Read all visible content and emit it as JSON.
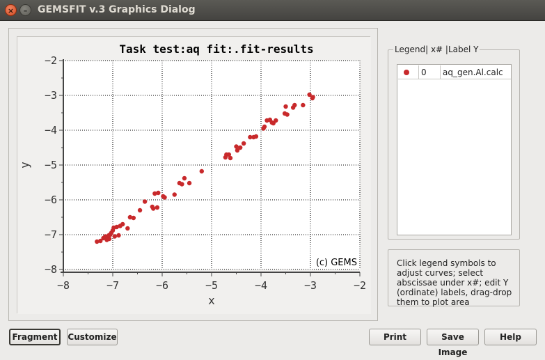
{
  "window": {
    "title": "GEMSFIT v.3 Graphics Dialog",
    "close_glyph": "×",
    "minimize_glyph": "–"
  },
  "chart_data": {
    "type": "scatter",
    "title": "Task test:aq fit:.fit-results",
    "xlabel": "x",
    "ylabel": "y",
    "xlim": [
      -8,
      -2
    ],
    "ylim": [
      -8,
      -2
    ],
    "xticks": [
      -8,
      -7,
      -6,
      -5,
      -4,
      -3,
      -2
    ],
    "yticks": [
      -2,
      -3,
      -4,
      -5,
      -6,
      -7,
      -8
    ],
    "tick_labels_x": [
      "−8",
      "−7",
      "−6",
      "−5",
      "−4",
      "−3",
      "−2"
    ],
    "tick_labels_y": [
      "−2",
      "−3",
      "−4",
      "−5",
      "−6",
      "−7",
      "−8"
    ],
    "grid": true,
    "annotation": "(c) GEMS",
    "marker_color": "#c8292b",
    "series": [
      {
        "name": "aq_gen.Al.calc",
        "points": [
          [
            -7.32,
            -7.2
          ],
          [
            -7.25,
            -7.18
          ],
          [
            -7.19,
            -7.1
          ],
          [
            -7.15,
            -7.05
          ],
          [
            -7.12,
            -7.15
          ],
          [
            -7.1,
            -7.1
          ],
          [
            -7.07,
            -7.12
          ],
          [
            -7.05,
            -7.0
          ],
          [
            -7.03,
            -6.95
          ],
          [
            -7.0,
            -6.88
          ],
          [
            -6.98,
            -6.8
          ],
          [
            -6.96,
            -7.05
          ],
          [
            -7.08,
            -7.02
          ],
          [
            -6.92,
            -6.78
          ],
          [
            -6.88,
            -7.02
          ],
          [
            -6.85,
            -6.75
          ],
          [
            -6.8,
            -6.7
          ],
          [
            -6.7,
            -6.82
          ],
          [
            -6.65,
            -6.5
          ],
          [
            -6.58,
            -6.52
          ],
          [
            -6.45,
            -6.3
          ],
          [
            -6.35,
            -6.05
          ],
          [
            -6.2,
            -6.2
          ],
          [
            -6.18,
            -6.25
          ],
          [
            -6.15,
            -5.82
          ],
          [
            -6.1,
            -6.22
          ],
          [
            -6.08,
            -5.8
          ],
          [
            -5.98,
            -5.9
          ],
          [
            -5.95,
            -5.93
          ],
          [
            -5.75,
            -5.85
          ],
          [
            -5.65,
            -5.52
          ],
          [
            -5.6,
            -5.55
          ],
          [
            -5.55,
            -5.38
          ],
          [
            -5.45,
            -5.52
          ],
          [
            -5.2,
            -5.18
          ],
          [
            -4.72,
            -4.78
          ],
          [
            -4.7,
            -4.7
          ],
          [
            -4.65,
            -4.7
          ],
          [
            -4.62,
            -4.8
          ],
          [
            -4.5,
            -4.47
          ],
          [
            -4.48,
            -4.58
          ],
          [
            -4.42,
            -4.5
          ],
          [
            -4.35,
            -4.38
          ],
          [
            -4.22,
            -4.2
          ],
          [
            -4.15,
            -4.2
          ],
          [
            -4.1,
            -4.18
          ],
          [
            -3.95,
            -3.95
          ],
          [
            -3.93,
            -3.9
          ],
          [
            -3.88,
            -3.72
          ],
          [
            -3.82,
            -3.7
          ],
          [
            -3.78,
            -3.78
          ],
          [
            -3.75,
            -3.8
          ],
          [
            -3.7,
            -3.72
          ],
          [
            -3.52,
            -3.52
          ],
          [
            -3.5,
            -3.32
          ],
          [
            -3.47,
            -3.55
          ],
          [
            -3.35,
            -3.35
          ],
          [
            -3.32,
            -3.28
          ],
          [
            -3.15,
            -3.28
          ],
          [
            -3.02,
            -2.98
          ],
          [
            -2.96,
            -3.08
          ],
          [
            -2.95,
            -3.05
          ]
        ]
      }
    ]
  },
  "legend": {
    "caption": "Legend| x# |Label Y",
    "rows": [
      {
        "x_index": "0",
        "label": "aq_gen.Al.calc",
        "color": "#c8292b"
      }
    ]
  },
  "hint": {
    "text": "Click legend symbols to adjust curves; select abscissae under x#; edit Y (ordinate) labels, drag-drop them to plot area"
  },
  "buttons": {
    "fragment": "Fragment",
    "customize": "Customize",
    "print": "Print",
    "save_image": "Save Image",
    "help": "Help"
  }
}
